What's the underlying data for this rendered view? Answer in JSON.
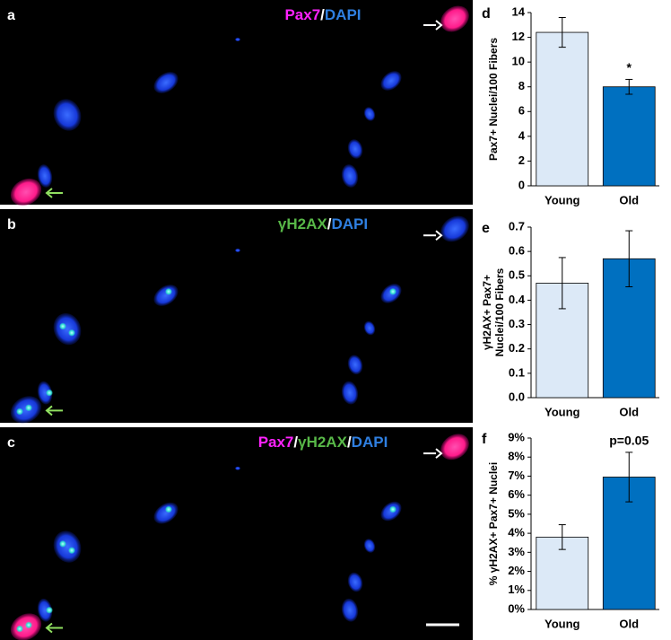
{
  "panels": [
    {
      "letter": "a",
      "stain": [
        {
          "text": "Pax7",
          "color": "#ff22ff"
        },
        {
          "text": "/",
          "color": "#ffffff"
        },
        {
          "text": "DAPI",
          "color": "#2f7fe0"
        }
      ]
    },
    {
      "letter": "b",
      "stain": [
        {
          "text": "γH2AX",
          "color": "#58b848"
        },
        {
          "text": "/",
          "color": "#ffffff"
        },
        {
          "text": "DAPI",
          "color": "#2f7fe0"
        }
      ]
    },
    {
      "letter": "c",
      "stain": [
        {
          "text": "Pax7",
          "color": "#ff22ff"
        },
        {
          "text": "/",
          "color": "#ffffff"
        },
        {
          "text": "γH2AX",
          "color": "#58b848"
        },
        {
          "text": "/",
          "color": "#ffffff"
        },
        {
          "text": "DAPI",
          "color": "#2f7fe0"
        }
      ]
    }
  ],
  "chart_data": [
    {
      "type": "bar",
      "letter": "d",
      "ylabel": [
        "Pax7+ Nuclei/100 Fibers"
      ],
      "categories": [
        "Young",
        "Old"
      ],
      "values": [
        12.4,
        8.0
      ],
      "errors": [
        1.2,
        0.6
      ],
      "colors": [
        "#dce9f7",
        "#0070c0"
      ],
      "annotations": [
        {
          "text": "*",
          "category": "Old"
        }
      ],
      "ylim": [
        0,
        14
      ],
      "yticks": [
        0,
        2,
        4,
        6,
        8,
        10,
        12,
        14
      ]
    },
    {
      "type": "bar",
      "letter": "e",
      "ylabel": [
        "γH2AX+ Pax7+",
        "Nuclei/100 Fibers"
      ],
      "categories": [
        "Young",
        "Old"
      ],
      "values": [
        0.47,
        0.57
      ],
      "errors": [
        0.105,
        0.115
      ],
      "colors": [
        "#dce9f7",
        "#0070c0"
      ],
      "ylim": [
        0,
        0.7
      ],
      "yticks": [
        {
          "value": 0,
          "label": "0.0"
        },
        0.1,
        0.2,
        0.3,
        0.4,
        0.5,
        0.6,
        0.7
      ]
    },
    {
      "type": "bar",
      "letter": "f",
      "ylabel": [
        "% γH2AX+ Pax7+ Nuclei"
      ],
      "categories": [
        "Young",
        "Old"
      ],
      "values": [
        3.8,
        6.95
      ],
      "errors": [
        0.65,
        1.3
      ],
      "colors": [
        "#dce9f7",
        "#0070c0"
      ],
      "annotations": [
        {
          "text": "p=0.05",
          "category": "Old"
        }
      ],
      "ylim": [
        0,
        9
      ],
      "yticks": [
        {
          "value": 0,
          "label": "0%"
        },
        {
          "value": 1,
          "label": "1%"
        },
        {
          "value": 2,
          "label": "2%"
        },
        {
          "value": 3,
          "label": "3%"
        },
        {
          "value": 4,
          "label": "4%"
        },
        {
          "value": 5,
          "label": "5%"
        },
        {
          "value": 6,
          "label": "6%"
        },
        {
          "value": 7,
          "label": "7%"
        },
        {
          "value": 8,
          "label": "8%"
        },
        {
          "value": 9,
          "label": "9%"
        }
      ]
    }
  ]
}
